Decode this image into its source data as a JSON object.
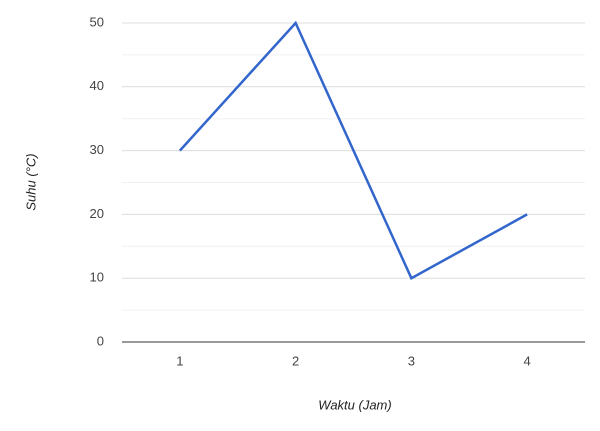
{
  "chart_data": {
    "type": "line",
    "x_label": "Waktu (Jam)",
    "y_label": "Suhu (°C)",
    "categories": [
      "1",
      "2",
      "3",
      "4"
    ],
    "series": [
      {
        "name": "Suhu",
        "color": "#3366cc",
        "values": [
          30,
          50,
          10,
          20
        ]
      }
    ],
    "ylim": [
      0,
      50
    ],
    "yticks": [
      0,
      10,
      20,
      30,
      40,
      50
    ],
    "minor_yticks": [
      5,
      15,
      25,
      35,
      45
    ],
    "grid": true,
    "legend": false
  }
}
